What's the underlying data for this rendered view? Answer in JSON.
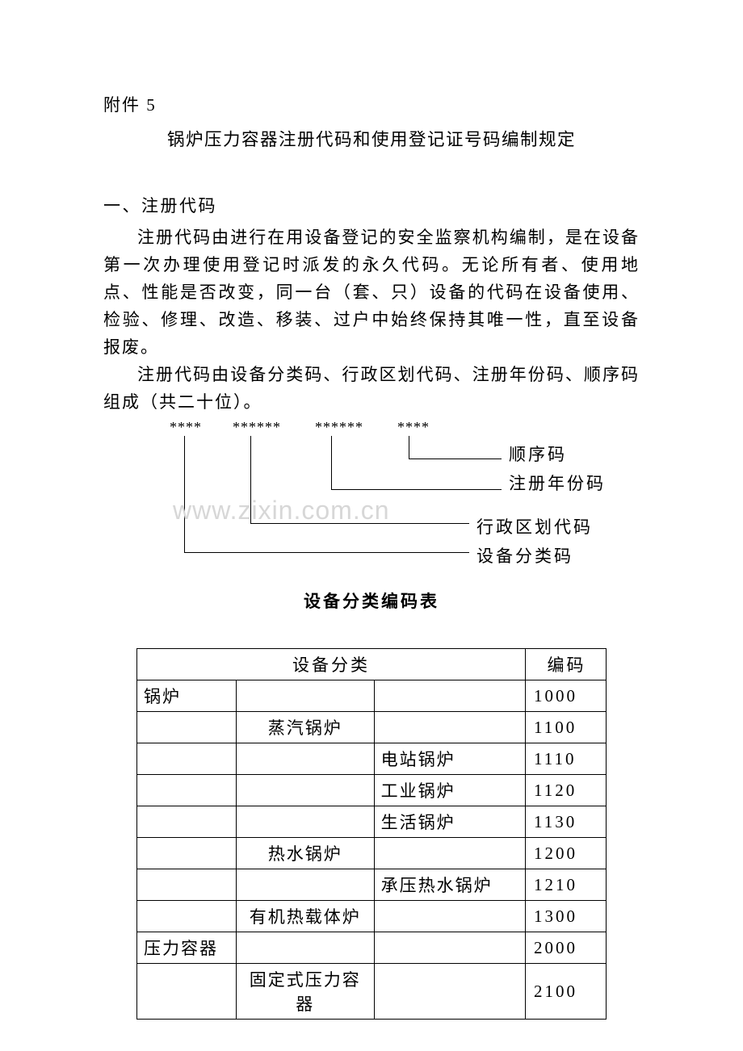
{
  "attachment_label": "附件",
  "attachment_number": "5",
  "title": "锅炉压力容器注册代码和使用登记证号码编制规定",
  "section_heading": "一、注册代码",
  "paragraph1": "注册代码由进行在用设备登记的安全监察机构编制，是在设备第一次办理使用登记时派发的永久代码。无论所有者、使用地点、性能是否改变，同一台（套、只）设备的代码在设备使用、检验、修理、改造、移装、过户中始终保持其唯一性，直至设备报废。",
  "paragraph2": "注册代码由设备分类码、行政区划代码、注册年份码、顺序码组成（共二十位）。",
  "diagram": {
    "stars1": "****",
    "stars2": "******",
    "stars3": "******",
    "stars4": "****",
    "label1": "设备分类码",
    "label2": "行政区划代码",
    "label3": "注册年份码",
    "label4": "顺序码"
  },
  "watermark": "www.zixin.com.cn",
  "table_title": "设备分类编码表",
  "table": {
    "header_category": "设备分类",
    "header_code": "编码",
    "rows": [
      {
        "c1": "锅炉",
        "c2": "",
        "c3": "",
        "code": "1000"
      },
      {
        "c1": "",
        "c2": "蒸汽锅炉",
        "c3": "",
        "code": "1100"
      },
      {
        "c1": "",
        "c2": "",
        "c3": "电站锅炉",
        "code": "1110"
      },
      {
        "c1": "",
        "c2": "",
        "c3": "工业锅炉",
        "code": "1120"
      },
      {
        "c1": "",
        "c2": "",
        "c3": "生活锅炉",
        "code": "1130"
      },
      {
        "c1": "",
        "c2": "热水锅炉",
        "c3": "",
        "code": "1200"
      },
      {
        "c1": "",
        "c2": "",
        "c3": "承压热水锅炉",
        "code": "1210"
      },
      {
        "c1": "",
        "c2": "有机热载体炉",
        "c3": "",
        "code": "1300"
      },
      {
        "c1": "压力容器",
        "c2": "",
        "c3": "",
        "code": "2000"
      },
      {
        "c1": "",
        "c2": "固定式压力容器",
        "c3": "",
        "code": "2100"
      }
    ]
  }
}
